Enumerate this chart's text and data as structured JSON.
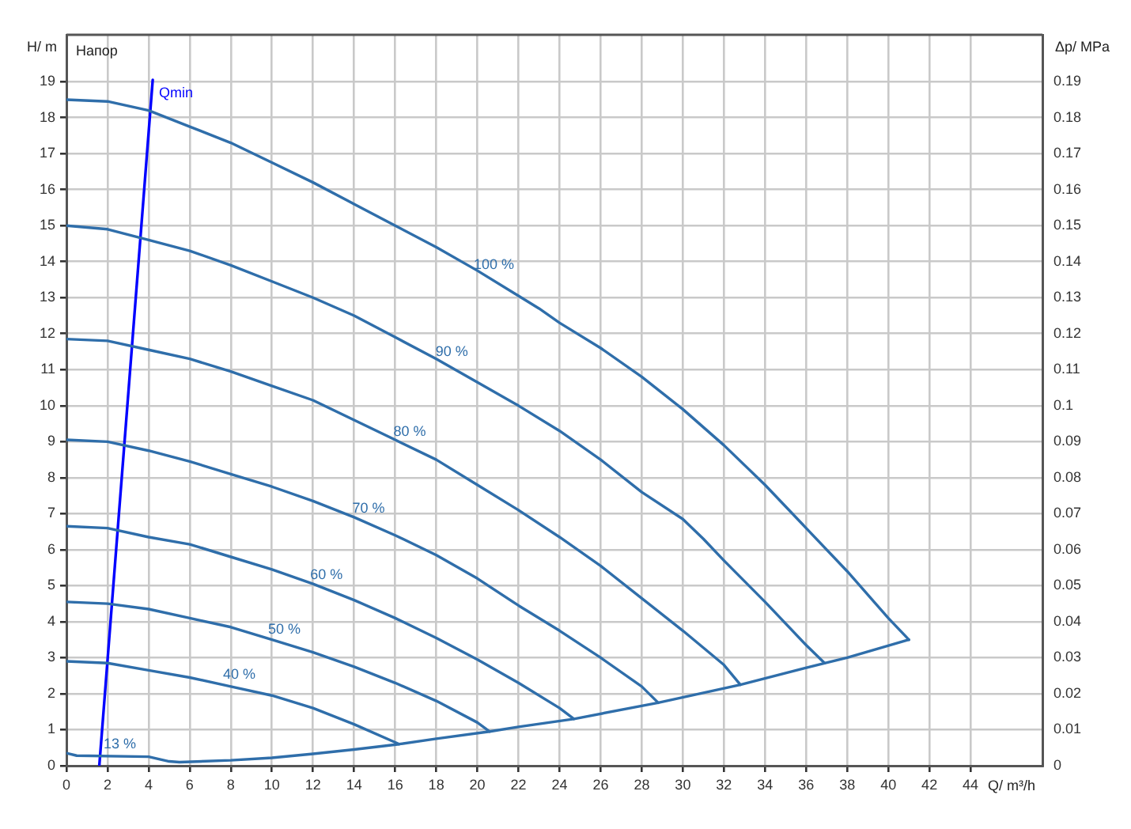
{
  "chart_data": {
    "type": "line",
    "xlabel": "Q/ m³/h",
    "ylabel": "H/ m",
    "y2label": "Δp/ MPa",
    "annotations": [
      "Напор",
      {
        "text": "13 %",
        "x": 2.6,
        "y": 0.3
      }
    ],
    "xlim": [
      0,
      47.5
    ],
    "xticks": [
      0,
      2,
      4,
      6,
      8,
      10,
      12,
      14,
      16,
      18,
      20,
      22,
      24,
      26,
      28,
      30,
      32,
      34,
      36,
      38,
      40,
      42,
      44
    ],
    "ylim": [
      0,
      20.3
    ],
    "yticks": [
      0,
      1,
      2,
      3,
      4,
      5,
      6,
      7,
      8,
      9,
      10,
      11,
      12,
      13,
      14,
      15,
      16,
      17,
      18,
      19
    ],
    "y2lim": [
      0,
      0.203
    ],
    "y2ticks": [
      0,
      0.01,
      0.02,
      0.03,
      0.04,
      0.05,
      0.06,
      0.07,
      0.08,
      0.09,
      0.1,
      0.11,
      0.12,
      0.13,
      0.14,
      0.15,
      0.16,
      0.17,
      0.18,
      0.19
    ],
    "grid": true,
    "legend": false,
    "marker": "none",
    "line_style": "solid",
    "series": [
      {
        "name": "100 %",
        "color": "#2f6eaa",
        "x": [
          0,
          2,
          4,
          6,
          8,
          10,
          12,
          14,
          16,
          18,
          20,
          22,
          23,
          24,
          26,
          28,
          29,
          30,
          32,
          34,
          36,
          38,
          40,
          41
        ],
        "values": [
          18.5,
          18.45,
          18.2,
          17.75,
          17.3,
          16.75,
          16.2,
          15.6,
          15.0,
          14.4,
          13.75,
          13.05,
          12.7,
          12.3,
          11.6,
          10.8,
          10.35,
          9.9,
          8.9,
          7.8,
          6.6,
          5.4,
          4.1,
          3.5
        ]
      },
      {
        "name": "90 %",
        "color": "#2f6eaa",
        "x": [
          0,
          2,
          4,
          6,
          8,
          10,
          12,
          14,
          16,
          18,
          20,
          22,
          24,
          26,
          28,
          30,
          31,
          32,
          34,
          36,
          36.9
        ],
        "values": [
          15.0,
          14.9,
          14.6,
          14.3,
          13.9,
          13.45,
          13.0,
          12.5,
          11.9,
          11.3,
          10.65,
          10.0,
          9.3,
          8.5,
          7.6,
          6.85,
          6.3,
          5.7,
          4.55,
          3.35,
          2.85
        ]
      },
      {
        "name": "80 %",
        "color": "#2f6eaa",
        "x": [
          0,
          2,
          4,
          6,
          8,
          10,
          12,
          14,
          16,
          18,
          20,
          22,
          24,
          26,
          28,
          30,
          32,
          32.8
        ],
        "values": [
          11.85,
          11.8,
          11.55,
          11.3,
          10.95,
          10.55,
          10.15,
          9.6,
          9.05,
          8.5,
          7.8,
          7.1,
          6.35,
          5.55,
          4.65,
          3.75,
          2.8,
          2.25
        ]
      },
      {
        "name": "70 %",
        "color": "#2f6eaa",
        "x": [
          0,
          2,
          4,
          6,
          8,
          10,
          12,
          14,
          16,
          18,
          20,
          22,
          24,
          26,
          28,
          28.8
        ],
        "values": [
          9.05,
          9.0,
          8.75,
          8.45,
          8.1,
          7.75,
          7.35,
          6.9,
          6.4,
          5.85,
          5.2,
          4.45,
          3.75,
          3.0,
          2.2,
          1.75
        ]
      },
      {
        "name": "60 %",
        "color": "#2f6eaa",
        "x": [
          0,
          2,
          4,
          6,
          8,
          10,
          12,
          14,
          16,
          18,
          20,
          22,
          24,
          24.7
        ],
        "values": [
          6.65,
          6.6,
          6.35,
          6.15,
          5.8,
          5.45,
          5.05,
          4.6,
          4.1,
          3.55,
          2.95,
          2.3,
          1.6,
          1.3
        ]
      },
      {
        "name": "50 %",
        "color": "#2f6eaa",
        "x": [
          0,
          2,
          4,
          6,
          8,
          10,
          12,
          14,
          16,
          18,
          20,
          20.6
        ],
        "values": [
          4.55,
          4.5,
          4.35,
          4.1,
          3.85,
          3.5,
          3.15,
          2.75,
          2.3,
          1.8,
          1.2,
          0.95
        ]
      },
      {
        "name": "40 %",
        "color": "#2f6eaa",
        "x": [
          0,
          2,
          4,
          6,
          8,
          10,
          12,
          14,
          16.2
        ],
        "values": [
          2.9,
          2.85,
          2.65,
          2.45,
          2.2,
          1.95,
          1.6,
          1.15,
          0.6
        ]
      },
      {
        "color": "#2f6eaa",
        "x": [
          0,
          0.5,
          4,
          5,
          5.5,
          8,
          10,
          12,
          14,
          16.2,
          18,
          20.6,
          22,
          24.7,
          28.8,
          32.8,
          36.9,
          38,
          41
        ],
        "values": [
          0.35,
          0.28,
          0.25,
          0.12,
          0.1,
          0.15,
          0.22,
          0.33,
          0.45,
          0.6,
          0.75,
          0.95,
          1.08,
          1.3,
          1.75,
          2.25,
          2.85,
          3.0,
          3.5
        ]
      },
      {
        "name": "Qmin",
        "color": "#0000ff",
        "x": [
          1.6,
          4.2
        ],
        "values": [
          0,
          19.05
        ]
      }
    ]
  }
}
